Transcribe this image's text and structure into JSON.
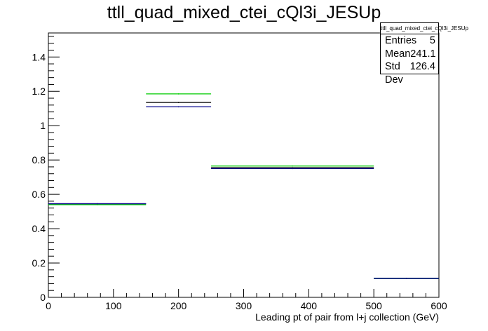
{
  "title": "ttll_quad_mixed_ctei_cQl3i_JESUp",
  "stats": {
    "name": "ttll_quad_mixed_ctei_cQl3i_JESUp",
    "rows": [
      {
        "label": "Entries",
        "value": "5"
      },
      {
        "label": "Mean",
        "value": "241.1"
      },
      {
        "label": "Std Dev",
        "value": "126.4"
      }
    ]
  },
  "chart_data": {
    "type": "histogram",
    "title": "ttll_quad_mixed_ctei_cQl3i_JESUp",
    "xlabel": "Leading pt of pair from l+j collection (GeV)",
    "ylabel": "",
    "xlim": [
      0,
      600
    ],
    "ylim": [
      0,
      1.54
    ],
    "xticks": [
      0,
      100,
      200,
      300,
      400,
      500,
      600
    ],
    "yticks": [
      0,
      0.2,
      0.4,
      0.6,
      0.8,
      1,
      1.2,
      1.4
    ],
    "bin_edges": [
      0,
      150,
      250,
      500,
      600
    ],
    "series": [
      {
        "color": "#000000",
        "values": [
          0.545,
          1.135,
          0.755,
          0.11
        ]
      },
      {
        "color": "#00cc00",
        "values": [
          0.54,
          1.185,
          0.765,
          0.11
        ]
      },
      {
        "color": "#00008b",
        "values": [
          0.545,
          1.11,
          0.75,
          0.11
        ]
      }
    ],
    "grid": false,
    "legend": "none"
  }
}
